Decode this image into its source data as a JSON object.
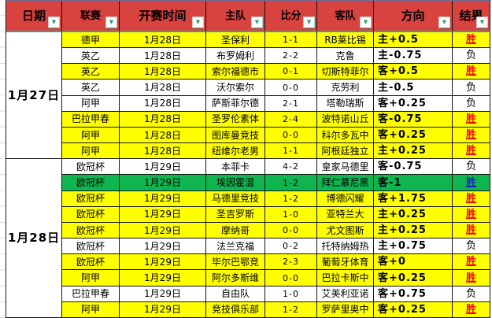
{
  "header": {
    "columns": [
      {
        "key": "date",
        "label": "日期",
        "bold": true
      },
      {
        "key": "league",
        "label": "联赛",
        "bold": false
      },
      {
        "key": "kickoff-time",
        "label": "开赛时间",
        "bold": true
      },
      {
        "key": "home-team",
        "label": "主队",
        "bold": false
      },
      {
        "key": "score",
        "label": "比分",
        "bold": false
      },
      {
        "key": "away-team",
        "label": "客队",
        "bold": false
      },
      {
        "key": "direction",
        "label": "方向",
        "bold": true
      },
      {
        "key": "result",
        "label": "结果",
        "bold": true
      }
    ]
  },
  "filter_icon": "▼",
  "colors": {
    "header_red": "#d8423f",
    "row_yellow": "#ffff00",
    "row_green": "#0fb54f",
    "win_red": "#ff0000",
    "win_blue": "#2121cc",
    "teal_accent": "#2aa794"
  },
  "groups": [
    {
      "date": "1月27日",
      "rows": [
        {
          "league": "德甲",
          "time": "1月28日",
          "home": "圣保利",
          "score": "1-1",
          "away": "RB莱比锡",
          "direction": "主+0.5",
          "result": "胜",
          "bg": "yellow",
          "result_color": "red"
        },
        {
          "league": "英乙",
          "time": "1月28日",
          "home": "布罗姆利",
          "score": "2-2",
          "away": "克鲁",
          "direction": "主-0.75",
          "result": "负",
          "bg": "white",
          "result_color": "black"
        },
        {
          "league": "英乙",
          "time": "1月28日",
          "home": "索尔福德市",
          "score": "0-1",
          "away": "切斯特菲尔",
          "direction": "客+0.5",
          "result": "胜",
          "bg": "yellow",
          "result_color": "red"
        },
        {
          "league": "英乙",
          "time": "1月28日",
          "home": "沃尔索尔",
          "score": "0-0",
          "away": "克劳利",
          "direction": "主-0.5",
          "result": "负",
          "bg": "white",
          "result_color": "black"
        },
        {
          "league": "阿甲",
          "time": "1月28日",
          "home": "萨斯菲尔德",
          "score": "2-1",
          "away": "塔勒瑞斯",
          "direction": "客+0.25",
          "result": "负",
          "bg": "white",
          "result_color": "black"
        },
        {
          "league": "巴拉甲春",
          "time": "1月28日",
          "home": "圣罗伦素体",
          "score": "2-4",
          "away": "波特诺山丘",
          "direction": "客-0.75",
          "result": "胜",
          "bg": "yellow",
          "result_color": "red"
        },
        {
          "league": "阿甲",
          "time": "1月28日",
          "home": "图库曼竞技",
          "score": "0-0",
          "away": "科尔多瓦中",
          "direction": "客+0.25",
          "result": "胜",
          "bg": "yellow",
          "result_color": "red"
        },
        {
          "league": "阿甲",
          "time": "1月28日",
          "home": "纽维尔老男",
          "score": "1-1",
          "away": "阿根廷独立",
          "direction": "主+0.25",
          "result": "胜",
          "bg": "yellow",
          "result_color": "red"
        }
      ]
    },
    {
      "date": "1月28日",
      "rows": [
        {
          "league": "欧冠杯",
          "time": "1月29日",
          "home": "本菲卡",
          "score": "4-2",
          "away": "皇家马德里",
          "direction": "客-0.75",
          "result": "负",
          "bg": "white",
          "result_color": "black"
        },
        {
          "league": "欧冠杯",
          "time": "1月29日",
          "home": "埃因霍温",
          "score": "1-2",
          "away": "拜仁慕尼黑",
          "direction": "客-1",
          "result": "胜",
          "bg": "green",
          "result_color": "blue"
        },
        {
          "league": "欧冠杯",
          "time": "1月29日",
          "home": "马德里竞技",
          "score": "1-2",
          "away": "博德闪耀",
          "direction": "客+1.75",
          "result": "胜",
          "bg": "yellow",
          "result_color": "red"
        },
        {
          "league": "欧冠杯",
          "time": "1月29日",
          "home": "圣吉罗斯",
          "score": "1-0",
          "away": "亚特兰大",
          "direction": "主+0.25",
          "result": "胜",
          "bg": "yellow",
          "result_color": "red"
        },
        {
          "league": "欧冠杯",
          "time": "1月29日",
          "home": "摩纳哥",
          "score": "0-0",
          "away": "尤文图斯",
          "direction": "主+0.25",
          "result": "胜",
          "bg": "yellow",
          "result_color": "red"
        },
        {
          "league": "欧冠杯",
          "time": "1月29日",
          "home": "法兰克福",
          "score": "0-2",
          "away": "托特纳姆热",
          "direction": "主+0.75",
          "result": "负",
          "bg": "white",
          "result_color": "black"
        },
        {
          "league": "欧冠杯",
          "time": "1月29日",
          "home": "毕尔巴鄂竞",
          "score": "2-3",
          "away": "葡萄牙体育",
          "direction": "客+0",
          "result": "胜",
          "bg": "yellow",
          "result_color": "red"
        },
        {
          "league": "阿甲",
          "time": "1月29日",
          "home": "阿尔多斯维",
          "score": "0-0",
          "away": "巴拉卡斯中",
          "direction": "客+0.25",
          "result": "胜",
          "bg": "yellow",
          "result_color": "red"
        },
        {
          "league": "巴拉甲春",
          "time": "1月29日",
          "home": "自由队",
          "score": "1-0",
          "away": "艾美利亚诺",
          "direction": "客+0.75",
          "result": "负",
          "bg": "white",
          "result_color": "black"
        },
        {
          "league": "阿甲",
          "time": "1月29日",
          "home": "竞技俱乐部",
          "score": "1-2",
          "away": "罗萨里奥中",
          "direction": "客+0.25",
          "result": "胜",
          "bg": "yellow",
          "result_color": "red"
        }
      ]
    }
  ]
}
